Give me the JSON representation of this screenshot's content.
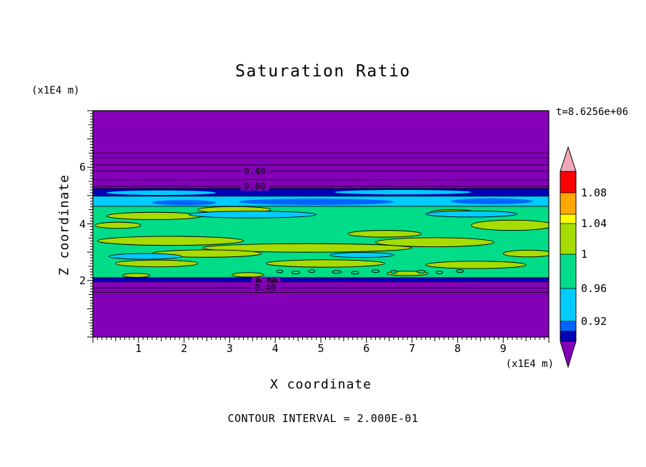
{
  "figure": {
    "title": "Saturation Ratio",
    "time_label": "t=8.6256e+06",
    "footer": "CONTOUR INTERVAL = 2.000E-01",
    "x_axis": {
      "label": "X coordinate",
      "unit": "(x1E4 m)",
      "tick_values": [
        1,
        2,
        3,
        4,
        5,
        6,
        7,
        8,
        9
      ]
    },
    "y_axis": {
      "label": "Z coordinate",
      "unit": "(x1E4 m)",
      "tick_values": [
        6,
        4,
        2
      ]
    }
  },
  "chart_data": {
    "type": "heatmap",
    "style": "filled-contour",
    "title": "Saturation Ratio",
    "xlabel": "X coordinate",
    "ylabel": "Z coordinate",
    "x_unit": "(x1E4 m)",
    "y_unit": "(x1E4 m)",
    "xlim": [
      0,
      10
    ],
    "ylim": [
      0,
      8
    ],
    "time_annotation": "t=8.6256e+06",
    "contour_interval": 0.2,
    "contour_interval_label": "CONTOUR INTERVAL = 2.000E-01",
    "field_description": "Saturation ratio near 1 (green) in a horizontal band between z=2 and z=5.25 (x1E4 m); purple (far below 0.92) above and below the band with labeled 0.2-interval contour lines in the unsaturated zones; cyan/blue low-saturation strip along the top of the band and yellow-green high-saturation streaks inside it.",
    "palette": {
      "purple": "#8400B8",
      "navy": "#0000B4",
      "blue": "#0064FF",
      "cyan": "#00CCFF",
      "green": "#00DC87",
      "yellow_green": "#A6DC00",
      "yellow": "#FFFF00",
      "orange": "#FFA800",
      "red": "#FA0000",
      "pink": "#F0A8B8"
    },
    "colorbar": {
      "tick_labels": [
        "1.08",
        "1.04",
        "1",
        "0.96",
        "0.92"
      ],
      "segments_top_to_bottom": [
        "pink",
        "red",
        "orange",
        "yellow",
        "yellow_green",
        "green",
        "cyan",
        "blue",
        "navy",
        "purple"
      ]
    },
    "bands": [
      {
        "z0": 1.97,
        "z1": 2.1,
        "color": "navy"
      },
      {
        "z0": 2.1,
        "z1": 4.62,
        "color": "green"
      },
      {
        "z0": 4.62,
        "z1": 4.98,
        "color": "cyan"
      },
      {
        "z0": 4.98,
        "z1": 5.25,
        "color": "navy"
      }
    ],
    "streaks": [
      {
        "x": 1.35,
        "z": 4.28,
        "rx": 1.05,
        "rz": 0.13,
        "c": "yellow_green",
        "s": 1
      },
      {
        "x": 3.1,
        "z": 4.5,
        "rx": 0.8,
        "rz": 0.11,
        "c": "yellow_green",
        "s": 1
      },
      {
        "x": 1.7,
        "z": 3.4,
        "rx": 1.6,
        "rz": 0.16,
        "c": "yellow_green",
        "s": 1
      },
      {
        "x": 4.7,
        "z": 3.15,
        "rx": 2.3,
        "rz": 0.15,
        "c": "yellow_green",
        "s": 1
      },
      {
        "x": 2.5,
        "z": 2.95,
        "rx": 1.2,
        "rz": 0.13,
        "c": "yellow_green",
        "s": 1
      },
      {
        "x": 7.5,
        "z": 3.35,
        "rx": 1.3,
        "rz": 0.16,
        "c": "yellow_green",
        "s": 1
      },
      {
        "x": 9.2,
        "z": 3.95,
        "rx": 0.9,
        "rz": 0.18,
        "c": "yellow_green",
        "s": 1
      },
      {
        "x": 6.4,
        "z": 3.65,
        "rx": 0.8,
        "rz": 0.12,
        "c": "yellow_green",
        "s": 1
      },
      {
        "x": 5.1,
        "z": 2.6,
        "rx": 1.3,
        "rz": 0.13,
        "c": "yellow_green",
        "s": 1
      },
      {
        "x": 1.4,
        "z": 2.6,
        "rx": 0.9,
        "rz": 0.12,
        "c": "yellow_green",
        "s": 1
      },
      {
        "x": 8.4,
        "z": 2.55,
        "rx": 1.1,
        "rz": 0.13,
        "c": "yellow_green",
        "s": 1
      },
      {
        "x": 9.55,
        "z": 2.95,
        "rx": 0.55,
        "rz": 0.12,
        "c": "yellow_green",
        "s": 1
      },
      {
        "x": 0.55,
        "z": 3.95,
        "rx": 0.5,
        "rz": 0.11,
        "c": "yellow_green",
        "s": 1
      },
      {
        "x": 3.4,
        "z": 2.2,
        "rx": 0.35,
        "rz": 0.08,
        "c": "yellow_green",
        "s": 1
      },
      {
        "x": 6.9,
        "z": 2.25,
        "rx": 0.45,
        "rz": 0.08,
        "c": "yellow_green",
        "s": 1
      },
      {
        "x": 0.95,
        "z": 2.18,
        "rx": 0.3,
        "rz": 0.07,
        "c": "yellow_green",
        "s": 1
      },
      {
        "x": 7.9,
        "z": 4.4,
        "rx": 0.5,
        "rz": 0.1,
        "c": "yellow_green",
        "s": 1
      },
      {
        "x": 3.5,
        "z": 4.33,
        "rx": 1.4,
        "rz": 0.12,
        "c": "cyan",
        "s": 1
      },
      {
        "x": 8.3,
        "z": 4.35,
        "rx": 1.0,
        "rz": 0.11,
        "c": "cyan",
        "s": 1
      },
      {
        "x": 1.15,
        "z": 2.85,
        "rx": 0.8,
        "rz": 0.1,
        "c": "cyan",
        "s": 1
      },
      {
        "x": 5.9,
        "z": 2.9,
        "rx": 0.7,
        "rz": 0.09,
        "c": "cyan",
        "s": 1
      },
      {
        "x": 4.9,
        "z": 4.78,
        "rx": 1.7,
        "rz": 0.11,
        "c": "blue",
        "s": 0
      },
      {
        "x": 8.75,
        "z": 4.8,
        "rx": 0.9,
        "rz": 0.1,
        "c": "blue",
        "s": 0
      },
      {
        "x": 2.0,
        "z": 4.75,
        "rx": 0.7,
        "rz": 0.09,
        "c": "blue",
        "s": 0
      },
      {
        "x": 1.5,
        "z": 5.1,
        "rx": 1.2,
        "rz": 0.08,
        "c": "cyan",
        "s": 0
      },
      {
        "x": 6.8,
        "z": 5.12,
        "rx": 1.5,
        "rz": 0.08,
        "c": "cyan",
        "s": 0
      },
      {
        "x": 4.1,
        "z": 2.32,
        "rx": 0.07,
        "rz": 0.05,
        "c": "green",
        "s": 1
      },
      {
        "x": 4.45,
        "z": 2.28,
        "rx": 0.09,
        "rz": 0.05,
        "c": "green",
        "s": 1
      },
      {
        "x": 4.8,
        "z": 2.33,
        "rx": 0.07,
        "rz": 0.05,
        "c": "green",
        "s": 1
      },
      {
        "x": 5.35,
        "z": 2.3,
        "rx": 0.1,
        "rz": 0.05,
        "c": "green",
        "s": 1
      },
      {
        "x": 5.75,
        "z": 2.27,
        "rx": 0.08,
        "rz": 0.05,
        "c": "green",
        "s": 1
      },
      {
        "x": 6.2,
        "z": 2.33,
        "rx": 0.08,
        "rz": 0.05,
        "c": "green",
        "s": 1
      },
      {
        "x": 6.6,
        "z": 2.3,
        "rx": 0.07,
        "rz": 0.05,
        "c": "green",
        "s": 1
      },
      {
        "x": 7.2,
        "z": 2.31,
        "rx": 0.09,
        "rz": 0.05,
        "c": "green",
        "s": 1
      },
      {
        "x": 7.6,
        "z": 2.28,
        "rx": 0.07,
        "rz": 0.05,
        "c": "green",
        "s": 1
      },
      {
        "x": 8.05,
        "z": 2.33,
        "rx": 0.08,
        "rz": 0.05,
        "c": "green",
        "s": 1
      }
    ],
    "contour_lines": [
      {
        "z": 6.5
      },
      {
        "z": 6.34
      },
      {
        "z": 6.08
      },
      {
        "z": 5.86,
        "labels": [
          "0.40"
        ],
        "label_x": 3.55
      },
      {
        "z": 5.56
      },
      {
        "z": 5.33,
        "labels": [
          "0.80"
        ],
        "label_x": 3.55
      },
      {
        "z": 5.25
      },
      {
        "z": 4.98
      },
      {
        "z": 4.62
      },
      {
        "z": 2.1
      },
      {
        "z": 1.95,
        "labels": [
          "0.80",
          "0.20"
        ],
        "label_x": 3.8
      },
      {
        "z": 1.74,
        "labels": [
          "0.40"
        ],
        "label_x": 3.78
      },
      {
        "z": 1.58
      }
    ]
  }
}
